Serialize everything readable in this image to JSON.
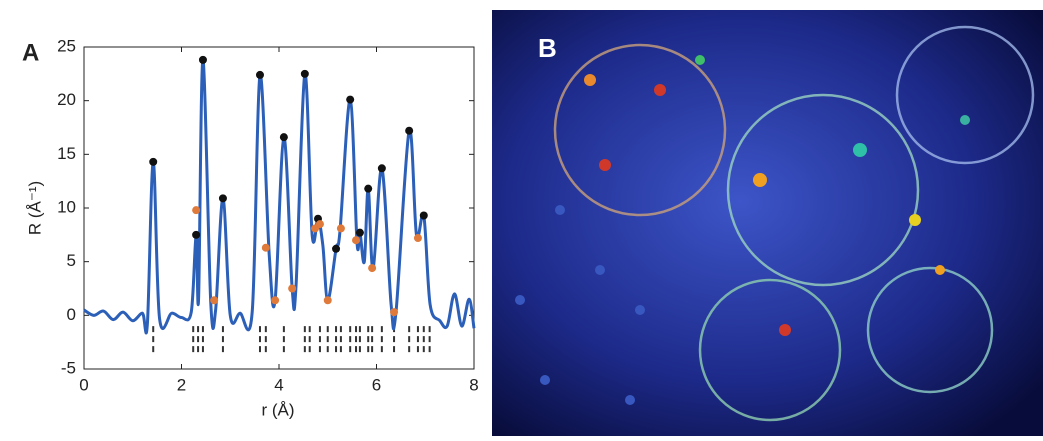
{
  "chart_data": {
    "type": "line",
    "panel_label": "A",
    "xlabel": "r (Å)",
    "ylabel": "R (Å⁻¹)",
    "xlim": [
      0,
      8
    ],
    "ylim": [
      -5,
      25
    ],
    "xticks": [
      0,
      2,
      4,
      6,
      8
    ],
    "yticks": [
      -5,
      0,
      5,
      10,
      15,
      20,
      25
    ],
    "series": [
      {
        "kind": "line",
        "color": "#2b5fb8",
        "x": [
          0,
          0.2,
          0.4,
          0.6,
          0.8,
          1.0,
          1.2,
          1.3,
          1.42,
          1.55,
          1.8,
          2.0,
          2.2,
          2.3,
          2.35,
          2.44,
          2.6,
          2.7,
          2.85,
          3.0,
          3.2,
          3.45,
          3.61,
          3.8,
          3.92,
          4.1,
          4.27,
          4.35,
          4.53,
          4.68,
          4.8,
          4.9,
          5.0,
          5.17,
          5.25,
          5.46,
          5.6,
          5.66,
          5.75,
          5.83,
          5.93,
          6.11,
          6.3,
          6.4,
          6.67,
          6.82,
          6.97,
          7.1,
          7.3,
          7.45,
          7.6,
          7.75,
          7.9,
          8.0
        ],
        "values": [
          0.5,
          0,
          0.4,
          -0.4,
          0.3,
          -0.5,
          0.2,
          -0.8,
          14.3,
          -0.3,
          0.2,
          -0.2,
          0.3,
          7.5,
          1.5,
          23.8,
          1.2,
          0.5,
          10.9,
          0,
          0.2,
          0.3,
          22.4,
          5.6,
          1.4,
          16.6,
          2.5,
          2.8,
          22.5,
          7.5,
          9.0,
          6.5,
          1.4,
          6.2,
          7.8,
          20.1,
          6.8,
          7.7,
          5.0,
          11.8,
          4.3,
          13.7,
          1.0,
          0.3,
          17.2,
          7.5,
          9.3,
          1.0,
          -0.5,
          -1.0,
          2.0,
          -1.0,
          1.5,
          -1.2
        ]
      },
      {
        "kind": "marker",
        "color": "#111111",
        "x": [
          1.42,
          2.44,
          2.85,
          2.3,
          3.61,
          4.1,
          4.53,
          4.8,
          5.46,
          5.83,
          6.11,
          6.67,
          6.97,
          5.17,
          5.66
        ],
        "values": [
          14.3,
          23.8,
          10.9,
          7.5,
          22.4,
          16.6,
          22.5,
          9.0,
          20.1,
          11.8,
          13.7,
          17.2,
          9.3,
          6.2,
          7.7
        ]
      },
      {
        "kind": "marker",
        "color": "#e07a3a",
        "x": [
          2.3,
          2.67,
          3.73,
          3.92,
          4.27,
          4.74,
          4.84,
          5.0,
          5.27,
          5.58,
          5.91,
          6.36,
          6.85
        ],
        "values": [
          9.8,
          1.4,
          6.3,
          1.4,
          2.5,
          8.1,
          8.5,
          1.4,
          8.1,
          7.0,
          4.4,
          0.3,
          7.2
        ]
      }
    ],
    "sticks": [
      1.42,
      2.24,
      2.34,
      2.44,
      2.85,
      3.61,
      3.73,
      4.1,
      4.53,
      4.63,
      4.84,
      5.0,
      5.17,
      5.27,
      5.46,
      5.58,
      5.66,
      5.83,
      5.91,
      6.11,
      6.36,
      6.67,
      6.85,
      6.97,
      7.09
    ]
  },
  "panel_b": {
    "label": "B"
  }
}
